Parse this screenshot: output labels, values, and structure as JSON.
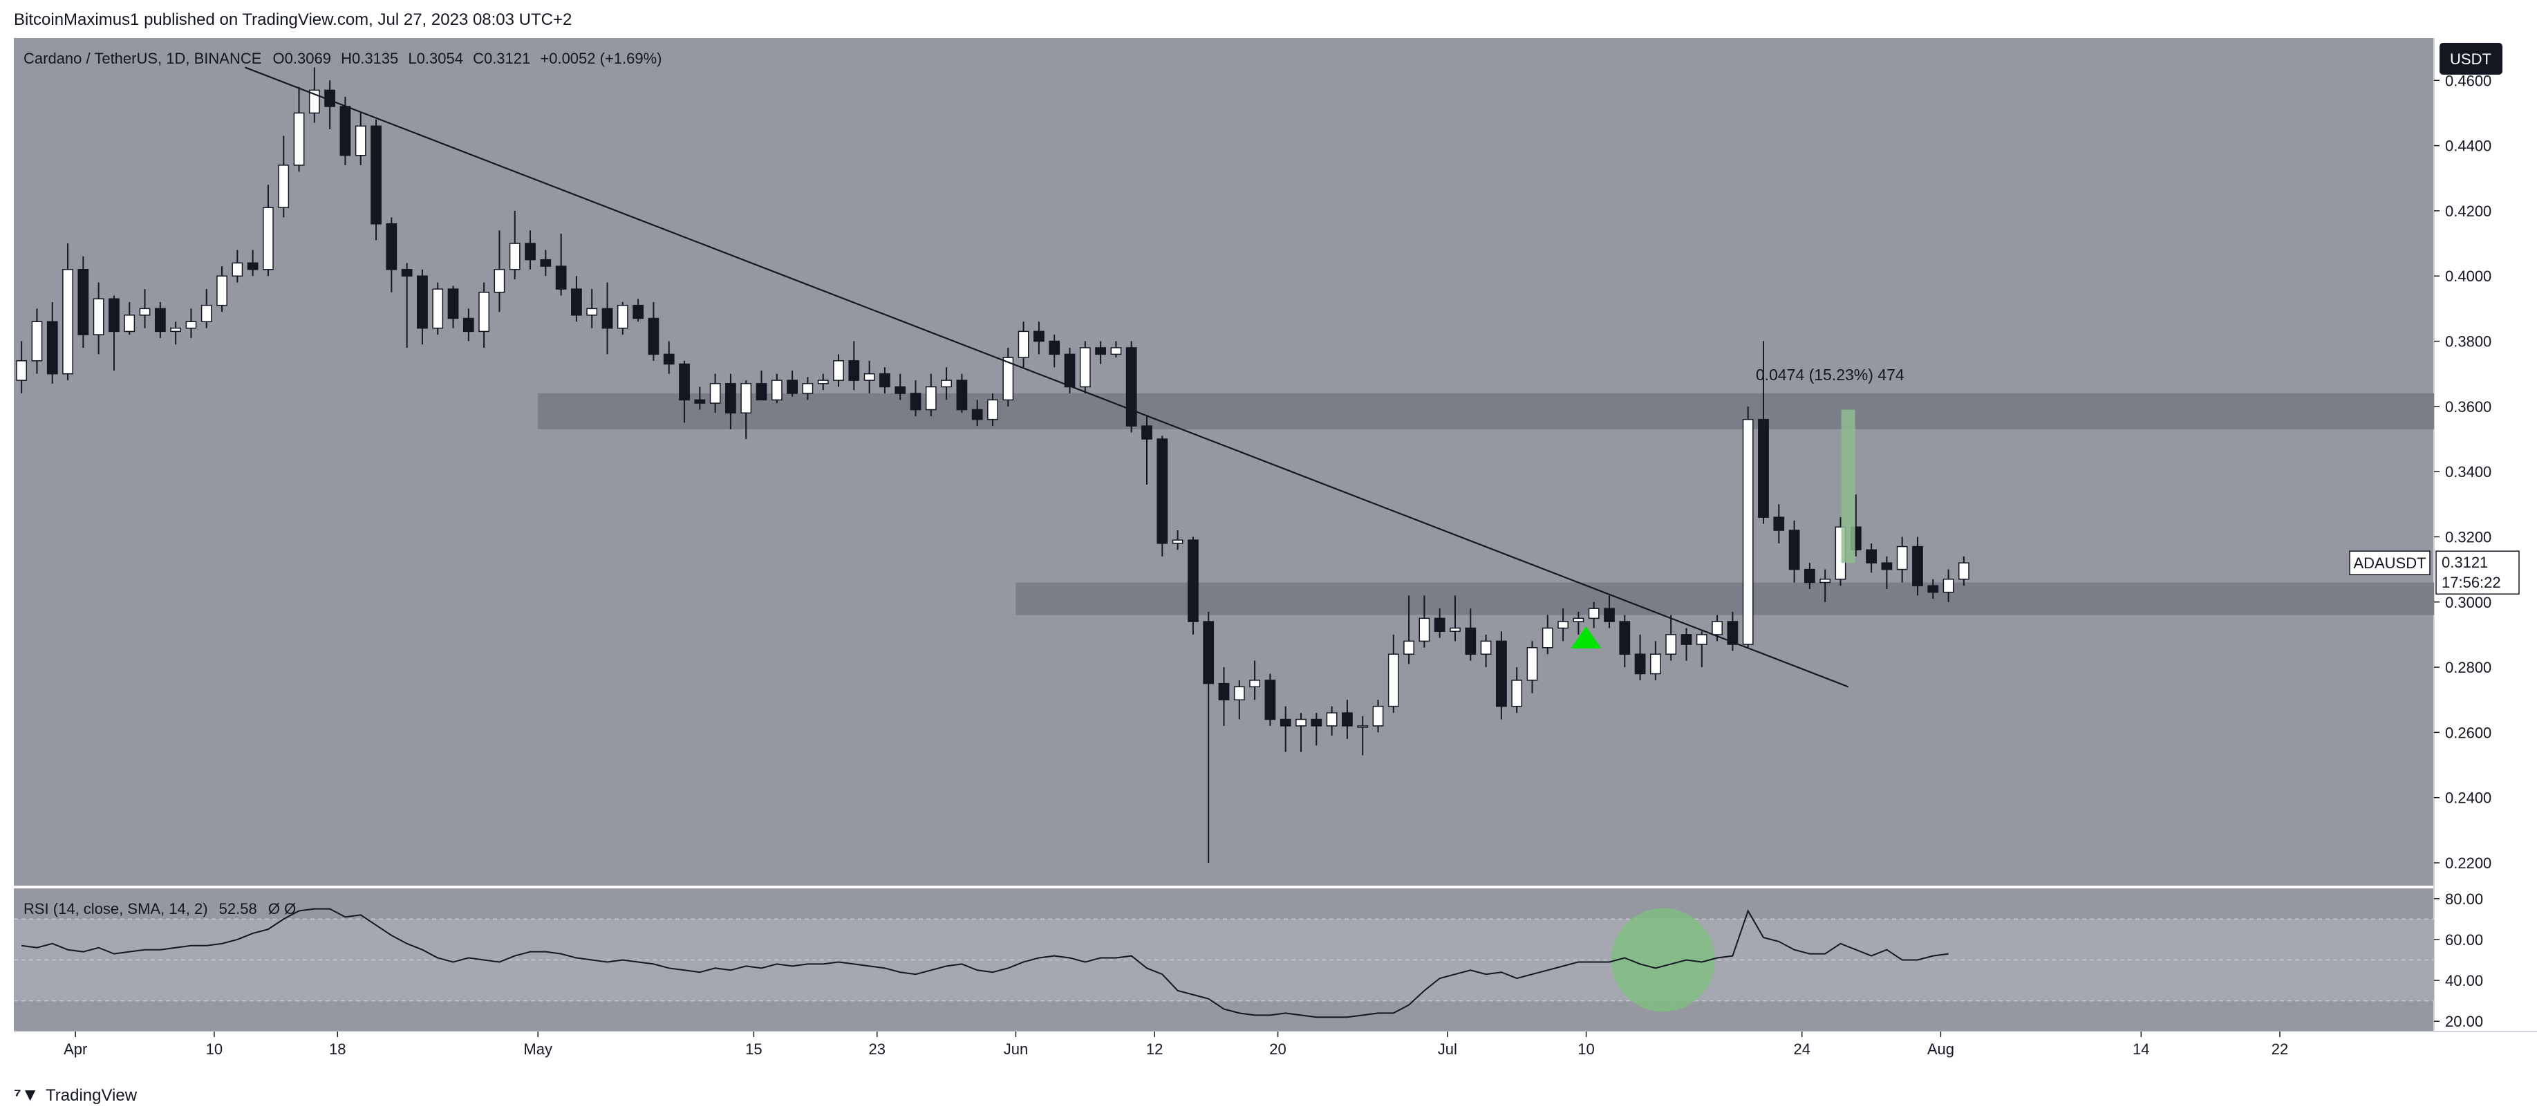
{
  "header": {
    "published": "BitcoinMaximus1 published on TradingView.com, Jul 27, 2023 08:03 UTC+2"
  },
  "legend": {
    "symbol": "Cardano / TetherUS, 1D, BINANCE",
    "ohlc_labels": [
      "O",
      "H",
      "L",
      "C"
    ],
    "ohlc_values": [
      "0.3069",
      "0.3135",
      "0.3054",
      "0.3121"
    ],
    "change": "+0.0052 (+1.69%)"
  },
  "currency_badge": "USDT",
  "price_label": {
    "symbol": "ADAUSDT",
    "price": "0.3121",
    "countdown": "17:56:22"
  },
  "measure_label": "0.0474 (15.23%) 474",
  "rsi_legend": {
    "label": "RSI (14, close, SMA, 14, 2)",
    "value": "52.58",
    "extras": "Ø Ø"
  },
  "footer": {
    "brand": "TradingView"
  },
  "colors": {
    "chart_bg": "#9598a1",
    "band": "#7b7e88",
    "candle_up": "#ffffff",
    "candle_down": "#131722",
    "arrow": "#00e600",
    "measure": "#8fbc8f",
    "rsi_circle": "#7fbf7f",
    "rsi_band": "#a5a8b0"
  },
  "chart_data": {
    "type": "candlestick",
    "y_axis": {
      "range": [
        0.213,
        0.473
      ],
      "ticks": [
        0.46,
        0.44,
        0.42,
        0.4,
        0.38,
        0.36,
        0.34,
        0.32,
        0.3,
        0.28,
        0.26,
        0.24,
        0.22
      ],
      "tick_labels": [
        "0.4600",
        "0.4400",
        "0.4200",
        "0.4000",
        "0.3800",
        "0.3600",
        "0.3400",
        "0.3200",
        "0.3000",
        "0.2800",
        "0.2600",
        "0.2400",
        "0.2200"
      ]
    },
    "x_axis": {
      "start_date": "2023-03-28",
      "range_days": [
        0,
        157
      ],
      "tick_days": [
        4,
        13,
        21,
        34,
        48,
        56,
        65,
        74,
        82,
        93,
        102,
        116,
        125,
        138,
        147
      ],
      "tick_labels": [
        "Apr",
        "10",
        "18",
        "May",
        "15",
        "23",
        "Jun",
        "12",
        "20",
        "Jul",
        "10",
        "24",
        "Aug",
        "14",
        "22"
      ]
    },
    "candles": [
      [
        0.368,
        0.38,
        0.364,
        0.374
      ],
      [
        0.374,
        0.39,
        0.37,
        0.386
      ],
      [
        0.386,
        0.392,
        0.367,
        0.37
      ],
      [
        0.37,
        0.41,
        0.368,
        0.402
      ],
      [
        0.402,
        0.406,
        0.378,
        0.382
      ],
      [
        0.382,
        0.398,
        0.376,
        0.393
      ],
      [
        0.393,
        0.394,
        0.371,
        0.383
      ],
      [
        0.383,
        0.392,
        0.382,
        0.388
      ],
      [
        0.388,
        0.396,
        0.384,
        0.39
      ],
      [
        0.39,
        0.392,
        0.381,
        0.383
      ],
      [
        0.383,
        0.386,
        0.379,
        0.384
      ],
      [
        0.384,
        0.39,
        0.381,
        0.386
      ],
      [
        0.386,
        0.396,
        0.384,
        0.391
      ],
      [
        0.391,
        0.403,
        0.389,
        0.4
      ],
      [
        0.4,
        0.408,
        0.398,
        0.404
      ],
      [
        0.404,
        0.408,
        0.4,
        0.402
      ],
      [
        0.402,
        0.428,
        0.4,
        0.421
      ],
      [
        0.421,
        0.443,
        0.418,
        0.434
      ],
      [
        0.434,
        0.458,
        0.432,
        0.45
      ],
      [
        0.45,
        0.464,
        0.447,
        0.457
      ],
      [
        0.457,
        0.46,
        0.445,
        0.452
      ],
      [
        0.452,
        0.455,
        0.434,
        0.437
      ],
      [
        0.437,
        0.45,
        0.434,
        0.446
      ],
      [
        0.446,
        0.448,
        0.411,
        0.416
      ],
      [
        0.416,
        0.418,
        0.395,
        0.402
      ],
      [
        0.402,
        0.404,
        0.378,
        0.4
      ],
      [
        0.4,
        0.402,
        0.379,
        0.384
      ],
      [
        0.384,
        0.398,
        0.382,
        0.396
      ],
      [
        0.396,
        0.397,
        0.384,
        0.387
      ],
      [
        0.387,
        0.39,
        0.38,
        0.383
      ],
      [
        0.383,
        0.398,
        0.378,
        0.395
      ],
      [
        0.395,
        0.414,
        0.389,
        0.402
      ],
      [
        0.402,
        0.42,
        0.399,
        0.41
      ],
      [
        0.41,
        0.414,
        0.402,
        0.405
      ],
      [
        0.405,
        0.408,
        0.4,
        0.403
      ],
      [
        0.403,
        0.413,
        0.394,
        0.396
      ],
      [
        0.396,
        0.4,
        0.386,
        0.388
      ],
      [
        0.388,
        0.396,
        0.384,
        0.39
      ],
      [
        0.39,
        0.398,
        0.376,
        0.384
      ],
      [
        0.384,
        0.392,
        0.382,
        0.391
      ],
      [
        0.391,
        0.393,
        0.386,
        0.387
      ],
      [
        0.387,
        0.392,
        0.374,
        0.376
      ],
      [
        0.376,
        0.38,
        0.37,
        0.373
      ],
      [
        0.373,
        0.374,
        0.355,
        0.362
      ],
      [
        0.362,
        0.366,
        0.359,
        0.361
      ],
      [
        0.361,
        0.37,
        0.358,
        0.367
      ],
      [
        0.367,
        0.37,
        0.353,
        0.358
      ],
      [
        0.358,
        0.368,
        0.35,
        0.367
      ],
      [
        0.367,
        0.371,
        0.362,
        0.362
      ],
      [
        0.362,
        0.37,
        0.361,
        0.368
      ],
      [
        0.368,
        0.371,
        0.363,
        0.364
      ],
      [
        0.364,
        0.369,
        0.362,
        0.367
      ],
      [
        0.367,
        0.37,
        0.365,
        0.368
      ],
      [
        0.368,
        0.376,
        0.366,
        0.374
      ],
      [
        0.374,
        0.38,
        0.365,
        0.368
      ],
      [
        0.368,
        0.374,
        0.364,
        0.37
      ],
      [
        0.37,
        0.372,
        0.364,
        0.366
      ],
      [
        0.366,
        0.37,
        0.362,
        0.364
      ],
      [
        0.364,
        0.368,
        0.357,
        0.359
      ],
      [
        0.359,
        0.37,
        0.357,
        0.366
      ],
      [
        0.366,
        0.372,
        0.362,
        0.368
      ],
      [
        0.368,
        0.37,
        0.358,
        0.359
      ],
      [
        0.359,
        0.362,
        0.354,
        0.356
      ],
      [
        0.356,
        0.364,
        0.354,
        0.362
      ],
      [
        0.362,
        0.378,
        0.36,
        0.375
      ],
      [
        0.375,
        0.386,
        0.372,
        0.383
      ],
      [
        0.383,
        0.386,
        0.376,
        0.38
      ],
      [
        0.38,
        0.382,
        0.372,
        0.376
      ],
      [
        0.376,
        0.378,
        0.364,
        0.366
      ],
      [
        0.366,
        0.38,
        0.364,
        0.378
      ],
      [
        0.378,
        0.38,
        0.373,
        0.376
      ],
      [
        0.376,
        0.38,
        0.375,
        0.378
      ],
      [
        0.378,
        0.38,
        0.352,
        0.354
      ],
      [
        0.354,
        0.357,
        0.336,
        0.35
      ],
      [
        0.35,
        0.351,
        0.314,
        0.318
      ],
      [
        0.318,
        0.322,
        0.316,
        0.319
      ],
      [
        0.319,
        0.32,
        0.29,
        0.294
      ],
      [
        0.294,
        0.297,
        0.22,
        0.275
      ],
      [
        0.275,
        0.28,
        0.262,
        0.27
      ],
      [
        0.27,
        0.276,
        0.264,
        0.274
      ],
      [
        0.274,
        0.282,
        0.27,
        0.276
      ],
      [
        0.276,
        0.278,
        0.262,
        0.264
      ],
      [
        0.264,
        0.268,
        0.254,
        0.262
      ],
      [
        0.262,
        0.266,
        0.254,
        0.264
      ],
      [
        0.264,
        0.266,
        0.256,
        0.262
      ],
      [
        0.262,
        0.268,
        0.259,
        0.266
      ],
      [
        0.266,
        0.27,
        0.258,
        0.262
      ],
      [
        0.262,
        0.265,
        0.253,
        0.262
      ],
      [
        0.262,
        0.27,
        0.26,
        0.268
      ],
      [
        0.268,
        0.29,
        0.266,
        0.284
      ],
      [
        0.284,
        0.302,
        0.281,
        0.288
      ],
      [
        0.288,
        0.302,
        0.286,
        0.295
      ],
      [
        0.295,
        0.298,
        0.289,
        0.291
      ],
      [
        0.291,
        0.302,
        0.288,
        0.292
      ],
      [
        0.292,
        0.298,
        0.282,
        0.284
      ],
      [
        0.284,
        0.29,
        0.28,
        0.288
      ],
      [
        0.288,
        0.291,
        0.264,
        0.268
      ],
      [
        0.268,
        0.28,
        0.266,
        0.276
      ],
      [
        0.276,
        0.288,
        0.272,
        0.286
      ],
      [
        0.286,
        0.296,
        0.284,
        0.292
      ],
      [
        0.292,
        0.298,
        0.288,
        0.294
      ],
      [
        0.294,
        0.297,
        0.29,
        0.295
      ],
      [
        0.295,
        0.3,
        0.292,
        0.298
      ],
      [
        0.298,
        0.302,
        0.292,
        0.294
      ],
      [
        0.294,
        0.296,
        0.28,
        0.284
      ],
      [
        0.284,
        0.29,
        0.276,
        0.278
      ],
      [
        0.278,
        0.288,
        0.276,
        0.284
      ],
      [
        0.284,
        0.296,
        0.282,
        0.29
      ],
      [
        0.29,
        0.292,
        0.282,
        0.287
      ],
      [
        0.287,
        0.291,
        0.28,
        0.29
      ],
      [
        0.29,
        0.296,
        0.288,
        0.294
      ],
      [
        0.294,
        0.297,
        0.285,
        0.287
      ],
      [
        0.287,
        0.36,
        0.286,
        0.356
      ],
      [
        0.356,
        0.38,
        0.324,
        0.326
      ],
      [
        0.326,
        0.33,
        0.318,
        0.322
      ],
      [
        0.322,
        0.325,
        0.306,
        0.31
      ],
      [
        0.31,
        0.312,
        0.304,
        0.306
      ],
      [
        0.306,
        0.31,
        0.3,
        0.307
      ],
      [
        0.307,
        0.326,
        0.305,
        0.323
      ],
      [
        0.323,
        0.333,
        0.314,
        0.316
      ],
      [
        0.316,
        0.318,
        0.309,
        0.312
      ],
      [
        0.312,
        0.314,
        0.304,
        0.31
      ],
      [
        0.31,
        0.32,
        0.306,
        0.317
      ],
      [
        0.317,
        0.32,
        0.302,
        0.305
      ],
      [
        0.305,
        0.307,
        0.301,
        0.303
      ],
      [
        0.303,
        0.31,
        0.3,
        0.307
      ],
      [
        0.307,
        0.314,
        0.305,
        0.312
      ]
    ],
    "support_zones": [
      {
        "from_day": 34,
        "to_day": 157,
        "low": 0.353,
        "high": 0.364
      },
      {
        "from_day": 65,
        "to_day": 157,
        "low": 0.296,
        "high": 0.306
      }
    ],
    "trendline": {
      "from": [
        15,
        0.464
      ],
      "to": [
        119,
        0.274
      ]
    },
    "measure": {
      "day": 119,
      "low": 0.312,
      "high": 0.359,
      "text_day": 113,
      "text_price": 0.368
    },
    "arrow": {
      "day": 102,
      "price": 0.29
    },
    "rsi": {
      "range": [
        15,
        85
      ],
      "ticks": [
        80,
        60,
        40,
        20
      ],
      "tick_labels": [
        "80.00",
        "60.00",
        "40.00",
        "20.00"
      ],
      "band": [
        30,
        70
      ],
      "midline": 50,
      "circle": {
        "day": 107,
        "value": 50
      },
      "values": [
        57,
        56,
        58,
        55,
        54,
        56,
        53,
        54,
        55,
        55,
        56,
        57,
        57,
        58,
        60,
        63,
        65,
        70,
        74,
        75,
        75,
        71,
        72,
        67,
        62,
        58,
        55,
        51,
        49,
        51,
        50,
        49,
        52,
        54,
        54,
        53,
        51,
        50,
        49,
        50,
        49,
        48,
        46,
        45,
        44,
        46,
        45,
        47,
        46,
        48,
        47,
        48,
        48,
        49,
        48,
        47,
        46,
        44,
        43,
        45,
        47,
        48,
        45,
        44,
        46,
        49,
        51,
        52,
        51,
        49,
        51,
        51,
        52,
        46,
        43,
        35,
        33,
        31,
        26,
        24,
        23,
        23,
        24,
        23,
        22,
        22,
        22,
        23,
        24,
        24,
        28,
        35,
        41,
        43,
        45,
        43,
        44,
        41,
        43,
        45,
        47,
        49,
        49,
        49,
        51,
        48,
        46,
        48,
        50,
        49,
        51,
        52,
        74,
        61,
        59,
        55,
        53,
        53,
        58,
        55,
        52,
        55,
        50,
        50,
        52,
        53
      ]
    }
  }
}
